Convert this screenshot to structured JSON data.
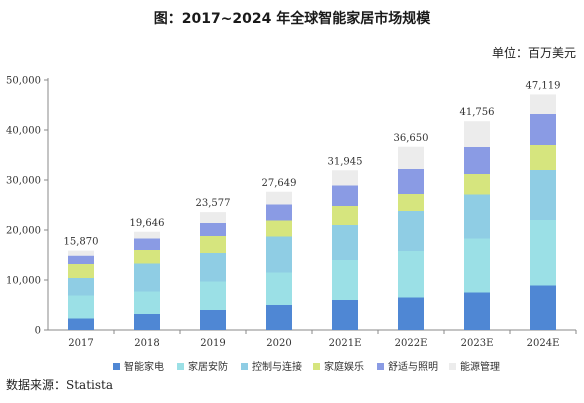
{
  "title": "图：2017~2024 年全球智能家居市场规模",
  "unit": "单位：百万美元",
  "source": "数据来源：Statista",
  "chart_data": {
    "type": "bar",
    "stacked": true,
    "categories": [
      "2017",
      "2018",
      "2019",
      "2020",
      "2021E",
      "2022E",
      "2023E",
      "2024E"
    ],
    "totals": [
      15870,
      19646,
      23577,
      27649,
      31945,
      36650,
      41756,
      47119
    ],
    "series": [
      {
        "name": "智能家电",
        "color": "#4f87d4",
        "values": [
          2300,
          3200,
          4000,
          5000,
          6000,
          6500,
          7500,
          8900
        ]
      },
      {
        "name": "家居安防",
        "color": "#9be0e6",
        "values": [
          4600,
          4500,
          5700,
          6500,
          8000,
          9300,
          10800,
          13100
        ]
      },
      {
        "name": "控制与连接",
        "color": "#8fcde4",
        "values": [
          3500,
          5600,
          5700,
          7200,
          7000,
          8000,
          8800,
          10000
        ]
      },
      {
        "name": "家庭娱乐",
        "color": "#d6e57e",
        "values": [
          2800,
          2700,
          3400,
          3200,
          3800,
          3400,
          4100,
          5000
        ]
      },
      {
        "name": "舒适与照明",
        "color": "#8a9be4",
        "values": [
          1670,
          2300,
          2600,
          3200,
          4100,
          5000,
          5400,
          6200
        ]
      },
      {
        "name": "能源管理",
        "color": "#ececec",
        "values": [
          1000,
          1346,
          2177,
          2549,
          3045,
          4450,
          5156,
          3919
        ]
      }
    ],
    "ylim": [
      0,
      50000
    ],
    "yticks": [
      "0",
      "10,000",
      "20,000",
      "30,000",
      "40,000",
      "50,000"
    ],
    "grid": false,
    "legend_position": "bottom"
  }
}
